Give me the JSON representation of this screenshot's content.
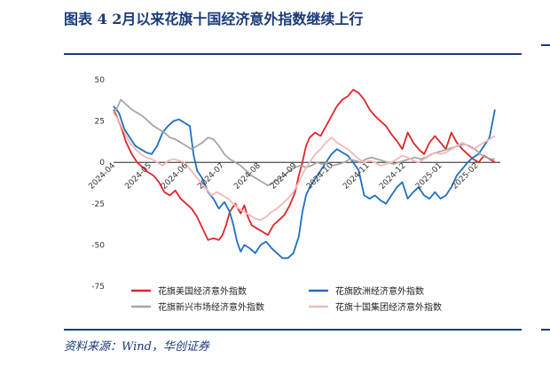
{
  "header": {
    "title": "图表 4  2月以来花旗十国经济意外指数继续上行"
  },
  "footer": {
    "source": "资料来源：Wind，华创证券"
  },
  "chart_data": {
    "type": "line",
    "title": "",
    "xlabel": "",
    "ylabel": "",
    "ylim": [
      -75,
      50
    ],
    "yticks": [
      50,
      25,
      0,
      -25,
      -50,
      -75
    ],
    "xtick_labels": [
      "2024-04",
      "2024-05",
      "2024-06",
      "2024-07",
      "2024-08",
      "2024-09",
      "2024-10",
      "2024-11",
      "2024-12",
      "2025-01",
      "2025-02"
    ],
    "xlim_months": [
      0,
      10.6
    ],
    "legend_position": "bottom",
    "grid": false,
    "series": [
      {
        "name": "花旗美国经济意外指数",
        "color": "#e0262a",
        "points": [
          [
            0.0,
            32
          ],
          [
            0.1,
            27
          ],
          [
            0.2,
            22
          ],
          [
            0.35,
            12
          ],
          [
            0.5,
            5
          ],
          [
            0.65,
            0
          ],
          [
            0.8,
            -3
          ],
          [
            0.95,
            -6
          ],
          [
            1.1,
            -8
          ],
          [
            1.25,
            -12
          ],
          [
            1.4,
            -18
          ],
          [
            1.55,
            -20
          ],
          [
            1.7,
            -17
          ],
          [
            1.85,
            -22
          ],
          [
            2.0,
            -25
          ],
          [
            2.15,
            -28
          ],
          [
            2.3,
            -33
          ],
          [
            2.45,
            -40
          ],
          [
            2.6,
            -47
          ],
          [
            2.75,
            -46
          ],
          [
            2.9,
            -47
          ],
          [
            3.0,
            -44
          ],
          [
            3.1,
            -38
          ],
          [
            3.2,
            -30
          ],
          [
            3.35,
            -25
          ],
          [
            3.5,
            -31
          ],
          [
            3.6,
            -26
          ],
          [
            3.7,
            -33
          ],
          [
            3.8,
            -38
          ],
          [
            3.95,
            -40
          ],
          [
            4.1,
            -42
          ],
          [
            4.25,
            -44
          ],
          [
            4.4,
            -38
          ],
          [
            4.55,
            -35
          ],
          [
            4.7,
            -32
          ],
          [
            4.85,
            -26
          ],
          [
            5.0,
            -18
          ],
          [
            5.1,
            -8
          ],
          [
            5.2,
            0
          ],
          [
            5.3,
            10
          ],
          [
            5.4,
            15
          ],
          [
            5.55,
            18
          ],
          [
            5.7,
            16
          ],
          [
            5.85,
            22
          ],
          [
            6.0,
            28
          ],
          [
            6.15,
            34
          ],
          [
            6.3,
            38
          ],
          [
            6.45,
            40
          ],
          [
            6.6,
            44
          ],
          [
            6.75,
            42
          ],
          [
            6.9,
            38
          ],
          [
            7.05,
            32
          ],
          [
            7.2,
            28
          ],
          [
            7.35,
            25
          ],
          [
            7.5,
            22
          ],
          [
            7.65,
            17
          ],
          [
            7.8,
            13
          ],
          [
            7.95,
            8
          ],
          [
            8.1,
            18
          ],
          [
            8.25,
            12
          ],
          [
            8.4,
            8
          ],
          [
            8.55,
            5
          ],
          [
            8.7,
            12
          ],
          [
            8.85,
            16
          ],
          [
            9.0,
            12
          ],
          [
            9.15,
            8
          ],
          [
            9.3,
            18
          ],
          [
            9.45,
            12
          ],
          [
            9.6,
            8
          ],
          [
            9.75,
            5
          ],
          [
            9.9,
            2
          ],
          [
            10.05,
            0
          ],
          [
            10.2,
            4
          ],
          [
            10.35,
            2
          ],
          [
            10.5,
            0
          ]
        ]
      },
      {
        "name": "花旗欧洲经济意外指数",
        "color": "#1f6fc2",
        "points": [
          [
            0.0,
            34
          ],
          [
            0.15,
            30
          ],
          [
            0.3,
            20
          ],
          [
            0.45,
            15
          ],
          [
            0.6,
            10
          ],
          [
            0.75,
            8
          ],
          [
            0.9,
            6
          ],
          [
            1.05,
            5
          ],
          [
            1.2,
            10
          ],
          [
            1.35,
            18
          ],
          [
            1.5,
            22
          ],
          [
            1.65,
            25
          ],
          [
            1.8,
            26
          ],
          [
            1.95,
            24
          ],
          [
            2.1,
            22
          ],
          [
            2.2,
            5
          ],
          [
            2.3,
            -5
          ],
          [
            2.45,
            -10
          ],
          [
            2.6,
            -18
          ],
          [
            2.75,
            -22
          ],
          [
            2.9,
            -28
          ],
          [
            3.05,
            -24
          ],
          [
            3.2,
            -30
          ],
          [
            3.3,
            -38
          ],
          [
            3.4,
            -48
          ],
          [
            3.5,
            -54
          ],
          [
            3.6,
            -50
          ],
          [
            3.75,
            -52
          ],
          [
            3.9,
            -55
          ],
          [
            4.05,
            -50
          ],
          [
            4.2,
            -48
          ],
          [
            4.35,
            -52
          ],
          [
            4.5,
            -55
          ],
          [
            4.65,
            -58
          ],
          [
            4.8,
            -58
          ],
          [
            4.95,
            -55
          ],
          [
            5.1,
            -45
          ],
          [
            5.2,
            -30
          ],
          [
            5.3,
            -20
          ],
          [
            5.4,
            -15
          ],
          [
            5.55,
            -10
          ],
          [
            5.7,
            -5
          ],
          [
            5.85,
            0
          ],
          [
            6.0,
            5
          ],
          [
            6.15,
            8
          ],
          [
            6.3,
            6
          ],
          [
            6.45,
            4
          ],
          [
            6.6,
            0
          ],
          [
            6.75,
            -5
          ],
          [
            6.9,
            -20
          ],
          [
            7.05,
            -22
          ],
          [
            7.2,
            -20
          ],
          [
            7.35,
            -23
          ],
          [
            7.5,
            -25
          ],
          [
            7.65,
            -20
          ],
          [
            7.8,
            -15
          ],
          [
            7.95,
            -12
          ],
          [
            8.1,
            -22
          ],
          [
            8.25,
            -18
          ],
          [
            8.4,
            -15
          ],
          [
            8.55,
            -20
          ],
          [
            8.7,
            -22
          ],
          [
            8.85,
            -18
          ],
          [
            9.0,
            -22
          ],
          [
            9.15,
            -20
          ],
          [
            9.3,
            -15
          ],
          [
            9.45,
            -8
          ],
          [
            9.6,
            -4
          ],
          [
            9.75,
            0
          ],
          [
            9.9,
            3
          ],
          [
            10.05,
            5
          ],
          [
            10.2,
            10
          ],
          [
            10.35,
            15
          ],
          [
            10.5,
            32
          ]
        ]
      },
      {
        "name": "花旗新兴市场经济意外指数",
        "color": "#a6a6a6",
        "points": [
          [
            0.0,
            30
          ],
          [
            0.1,
            33
          ],
          [
            0.2,
            38
          ],
          [
            0.35,
            35
          ],
          [
            0.5,
            32
          ],
          [
            0.65,
            30
          ],
          [
            0.8,
            28
          ],
          [
            0.95,
            25
          ],
          [
            1.1,
            22
          ],
          [
            1.25,
            20
          ],
          [
            1.4,
            18
          ],
          [
            1.55,
            15
          ],
          [
            1.7,
            14
          ],
          [
            1.85,
            12
          ],
          [
            2.0,
            10
          ],
          [
            2.15,
            8
          ],
          [
            2.3,
            10
          ],
          [
            2.45,
            12
          ],
          [
            2.6,
            15
          ],
          [
            2.75,
            14
          ],
          [
            2.9,
            10
          ],
          [
            3.05,
            5
          ],
          [
            3.2,
            2
          ],
          [
            3.35,
            0
          ],
          [
            3.5,
            -2
          ],
          [
            3.65,
            -5
          ],
          [
            3.8,
            -8
          ],
          [
            3.95,
            -10
          ],
          [
            4.1,
            -12
          ],
          [
            4.25,
            -14
          ],
          [
            4.4,
            -12
          ],
          [
            4.55,
            -10
          ],
          [
            4.7,
            -8
          ],
          [
            4.85,
            -5
          ],
          [
            5.0,
            -3
          ],
          [
            5.15,
            -2
          ],
          [
            5.3,
            -3
          ],
          [
            5.45,
            -2
          ],
          [
            5.6,
            0
          ],
          [
            5.75,
            -1
          ],
          [
            5.9,
            0
          ],
          [
            6.05,
            -2
          ],
          [
            6.2,
            -1
          ],
          [
            6.35,
            0
          ],
          [
            6.5,
            2
          ],
          [
            6.65,
            1
          ],
          [
            6.8,
            0
          ],
          [
            6.95,
            2
          ],
          [
            7.1,
            3
          ],
          [
            7.25,
            2
          ],
          [
            7.4,
            1
          ],
          [
            7.55,
            0
          ],
          [
            7.7,
            -1
          ],
          [
            7.85,
            0
          ],
          [
            8.0,
            1
          ],
          [
            8.15,
            2
          ],
          [
            8.3,
            3
          ],
          [
            8.45,
            2
          ],
          [
            8.6,
            3
          ],
          [
            8.75,
            5
          ],
          [
            8.9,
            6
          ],
          [
            9.05,
            7
          ],
          [
            9.2,
            8
          ],
          [
            9.35,
            9
          ],
          [
            9.5,
            10
          ],
          [
            9.65,
            11
          ],
          [
            9.8,
            10
          ],
          [
            9.95,
            8
          ],
          [
            10.1,
            5
          ],
          [
            10.25,
            3
          ],
          [
            10.4,
            2
          ],
          [
            10.5,
            2
          ]
        ]
      },
      {
        "name": "花旗十国集团经济意外指数",
        "color": "#f2b8b8",
        "points": [
          [
            0.0,
            30
          ],
          [
            0.15,
            25
          ],
          [
            0.3,
            18
          ],
          [
            0.45,
            12
          ],
          [
            0.6,
            8
          ],
          [
            0.75,
            5
          ],
          [
            0.9,
            3
          ],
          [
            1.05,
            2
          ],
          [
            1.2,
            0
          ],
          [
            1.35,
            -2
          ],
          [
            1.5,
            1
          ],
          [
            1.65,
            2
          ],
          [
            1.8,
            1
          ],
          [
            1.95,
            0
          ],
          [
            2.1,
            -4
          ],
          [
            2.25,
            -8
          ],
          [
            2.4,
            -12
          ],
          [
            2.55,
            -16
          ],
          [
            2.7,
            -20
          ],
          [
            2.85,
            -18
          ],
          [
            3.0,
            -20
          ],
          [
            3.15,
            -22
          ],
          [
            3.3,
            -25
          ],
          [
            3.45,
            -28
          ],
          [
            3.6,
            -30
          ],
          [
            3.75,
            -32
          ],
          [
            3.9,
            -34
          ],
          [
            4.05,
            -35
          ],
          [
            4.2,
            -33
          ],
          [
            4.35,
            -30
          ],
          [
            4.5,
            -28
          ],
          [
            4.65,
            -25
          ],
          [
            4.8,
            -22
          ],
          [
            4.95,
            -18
          ],
          [
            5.1,
            -12
          ],
          [
            5.25,
            -5
          ],
          [
            5.4,
            0
          ],
          [
            5.55,
            5
          ],
          [
            5.7,
            8
          ],
          [
            5.85,
            12
          ],
          [
            6.0,
            15
          ],
          [
            6.15,
            12
          ],
          [
            6.3,
            10
          ],
          [
            6.45,
            8
          ],
          [
            6.6,
            5
          ],
          [
            6.75,
            2
          ],
          [
            6.9,
            0
          ],
          [
            7.05,
            1
          ],
          [
            7.2,
            0
          ],
          [
            7.35,
            -2
          ],
          [
            7.5,
            -1
          ],
          [
            7.65,
            0
          ],
          [
            7.8,
            2
          ],
          [
            7.95,
            4
          ],
          [
            8.1,
            3
          ],
          [
            8.25,
            1
          ],
          [
            8.4,
            0
          ],
          [
            8.55,
            2
          ],
          [
            8.7,
            4
          ],
          [
            8.85,
            6
          ],
          [
            9.0,
            5
          ],
          [
            9.15,
            6
          ],
          [
            9.3,
            8
          ],
          [
            9.45,
            10
          ],
          [
            9.6,
            12
          ],
          [
            9.75,
            10
          ],
          [
            9.9,
            8
          ],
          [
            10.05,
            10
          ],
          [
            10.2,
            12
          ],
          [
            10.35,
            14
          ],
          [
            10.5,
            16
          ]
        ]
      }
    ]
  }
}
